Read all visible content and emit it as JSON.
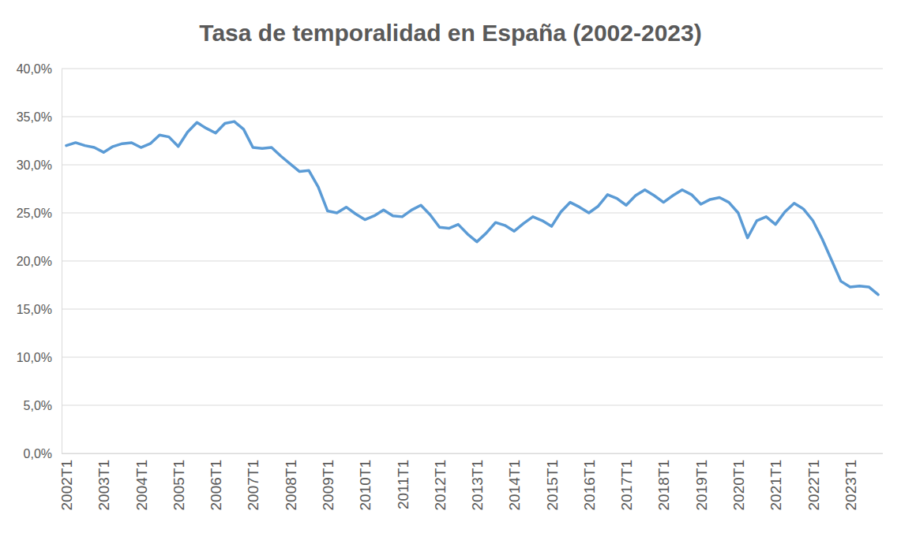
{
  "chart_data": {
    "type": "line",
    "title": "Tasa de temporalidad en España (2002-2023)",
    "categories": [
      "2002T1",
      null,
      null,
      null,
      "2003T1",
      null,
      null,
      null,
      "2004T1",
      null,
      null,
      null,
      "2005T1",
      null,
      null,
      null,
      "2006T1",
      null,
      null,
      null,
      "2007T1",
      null,
      null,
      null,
      "2008T1",
      null,
      null,
      null,
      "2009T1",
      null,
      null,
      null,
      "2010T1",
      null,
      null,
      null,
      "2011T1",
      null,
      null,
      null,
      "2012T1",
      null,
      null,
      null,
      "2013T1",
      null,
      null,
      null,
      "2014T1",
      null,
      null,
      null,
      "2015T1",
      null,
      null,
      null,
      "2016T1",
      null,
      null,
      null,
      "2017T1",
      null,
      null,
      null,
      "2018T1",
      null,
      null,
      null,
      "2019T1",
      null,
      null,
      null,
      "2020T1",
      null,
      null,
      null,
      "2021T1",
      null,
      null,
      null,
      "2022T1",
      null,
      null,
      null,
      "2023T1",
      null,
      null,
      null
    ],
    "values": [
      32.0,
      32.3,
      32.0,
      31.8,
      31.3,
      31.9,
      32.2,
      32.3,
      31.8,
      32.2,
      33.1,
      32.9,
      31.9,
      33.4,
      34.4,
      33.8,
      33.3,
      34.3,
      34.5,
      33.7,
      31.8,
      31.7,
      31.8,
      30.9,
      30.1,
      29.3,
      29.4,
      27.7,
      25.2,
      25.0,
      25.6,
      24.9,
      24.3,
      24.7,
      25.3,
      24.7,
      24.6,
      25.3,
      25.8,
      24.8,
      23.5,
      23.4,
      23.8,
      22.8,
      22.0,
      22.9,
      24.0,
      23.7,
      23.1,
      23.9,
      24.6,
      24.2,
      23.6,
      25.1,
      26.1,
      25.6,
      25.0,
      25.7,
      26.9,
      26.5,
      25.8,
      26.8,
      27.4,
      26.8,
      26.1,
      26.8,
      27.4,
      26.9,
      25.9,
      26.4,
      26.6,
      26.1,
      25.0,
      22.4,
      24.2,
      24.6,
      23.8,
      25.1,
      26.0,
      25.4,
      24.2,
      22.3,
      20.1,
      17.9,
      17.3,
      17.4,
      17.3,
      16.5
    ],
    "color": "#5b9bd5",
    "ylim": [
      0,
      40
    ],
    "yticks": [
      {
        "value": 0,
        "label": "0,0%"
      },
      {
        "value": 5,
        "label": "5,0%"
      },
      {
        "value": 10,
        "label": "10,0%"
      },
      {
        "value": 15,
        "label": "15,0%"
      },
      {
        "value": 20,
        "label": "20,0%"
      },
      {
        "value": 25,
        "label": "25,0%"
      },
      {
        "value": 30,
        "label": "30,0%"
      },
      {
        "value": 35,
        "label": "35,0%"
      },
      {
        "value": 40,
        "label": "40,0%"
      }
    ],
    "grid": true
  }
}
